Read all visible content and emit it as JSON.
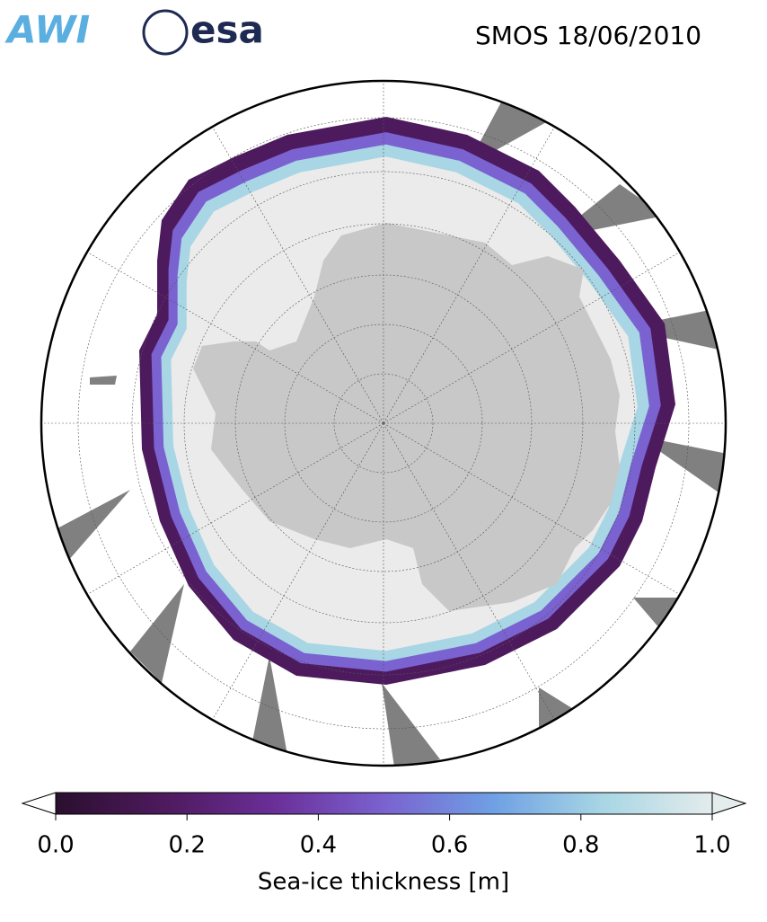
{
  "header": {
    "logos": [
      "AWI",
      "esa"
    ],
    "title": "SMOS 18/06/2010"
  },
  "colorbar": {
    "label": "Sea-ice thickness [m]",
    "range": [
      0,
      1
    ],
    "ticks": [
      {
        "value": 0,
        "label": "0.0"
      },
      0.2,
      0.4,
      0.6,
      0.8,
      {
        "value": 1,
        "label": "1.0"
      }
    ],
    "colors": [
      "#2a0f2e",
      "#4e1a5e",
      "#6a2f98",
      "#7a62d0",
      "#6fa0e4",
      "#a8d6e4",
      "#e4ecec"
    ]
  }
}
